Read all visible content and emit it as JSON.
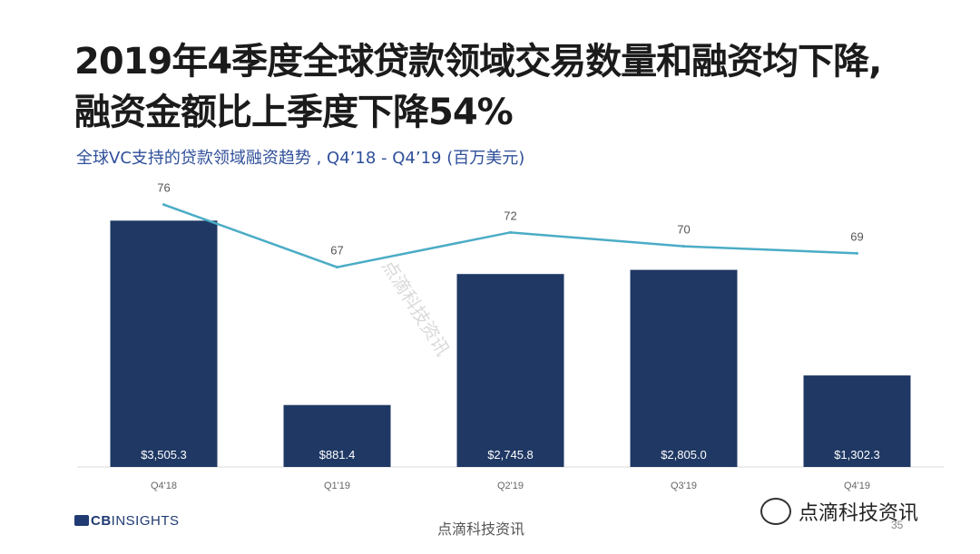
{
  "title_line1": "2019年4季度全球贷款领域交易数量和融资均下降,",
  "title_line2": "融资金额比上季度下降54%",
  "subtitle": "全球VC支持的贷款领域融资趋势 , Q4’18 - Q4’19 (百万美元)",
  "logo_brand": "CB",
  "logo_text": "INSIGHTS",
  "footer_watermark": "点滴科技资讯",
  "brand_watermark": "点滴科技资讯",
  "diagonal_watermark": "点滴科技资讯",
  "page_number": "35",
  "colors": {
    "bar": "#1f3864",
    "line": "#4bacc6",
    "title": "#1b1b1b",
    "subtitle": "#2f4f9a"
  },
  "chart_data": {
    "type": "bar",
    "categories": [
      "Q4'18",
      "Q1'19",
      "Q2'19",
      "Q3'19",
      "Q4'19"
    ],
    "bar_series": {
      "values": [
        3505.3,
        881.4,
        2745.8,
        2805.0,
        1302.3
      ],
      "labels": [
        "$3,505.3",
        "$881.4",
        "$2,745.8",
        "$2,805.0",
        "$1,302.3"
      ]
    },
    "line_series": {
      "values": [
        76,
        67,
        72,
        70,
        69
      ]
    },
    "title": "",
    "xlabel": "",
    "ylabel": "",
    "grid": false,
    "legend": "none"
  }
}
